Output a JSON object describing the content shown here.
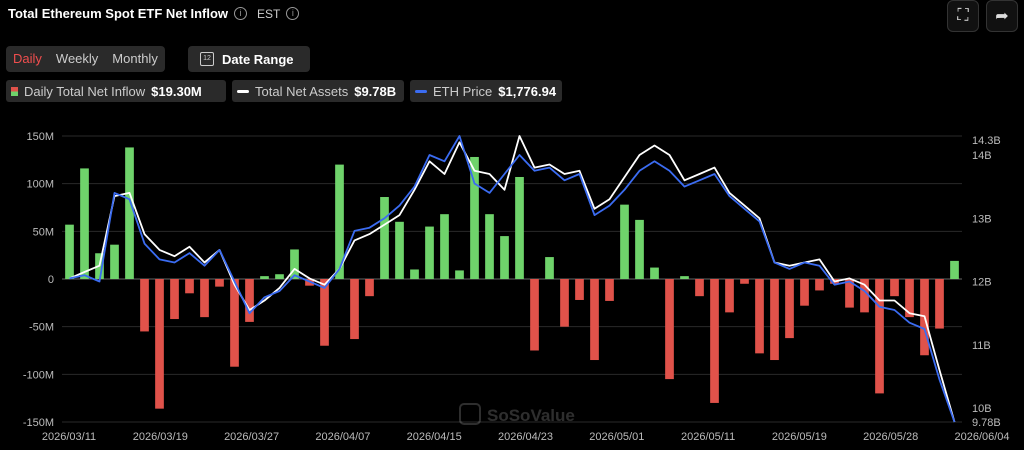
{
  "header": {
    "title": "Total Ethereum Spot ETF Net Inflow",
    "timezone": "EST"
  },
  "tabs": [
    {
      "label": "Daily",
      "active": true
    },
    {
      "label": "Weekly"
    },
    {
      "label": "Monthly"
    }
  ],
  "date_range_label": "Date Range",
  "legend": [
    {
      "label": "Daily Total Net Inflow",
      "value": "$19.30M"
    },
    {
      "label": "Total Net Assets",
      "value": "$9.78B",
      "color": "#ffffff"
    },
    {
      "label": "ETH Price",
      "value": "$1,776.94",
      "color": "#3b6cf2"
    }
  ],
  "watermark": "SoSoValue",
  "colors": {
    "positive": "#6fd36b",
    "negative": "#e0524a",
    "assets_line": "#ffffff",
    "price_line": "#3b6cf2"
  },
  "chart_data": {
    "type": "bar",
    "title": "Total Ethereum Spot ETF Net Inflow",
    "x_tick_labels": [
      "2026/03/11",
      "2026/03/19",
      "2026/03/27",
      "2026/04/07",
      "2026/04/15",
      "2026/04/23",
      "2026/05/01",
      "2026/05/11",
      "2026/05/19",
      "2026/05/28",
      "2026/06/04"
    ],
    "y_left": {
      "ticks": [
        "150M",
        "100M",
        "50M",
        "0",
        "-50M",
        "-100M",
        "-150M"
      ],
      "range": [
        -150,
        150
      ],
      "unit": "M USD"
    },
    "y_right": {
      "ticks": [
        "14.3B",
        "14B",
        "13B",
        "12B",
        "11B",
        "10B",
        "9.78B"
      ],
      "range": [
        9.78,
        14.3
      ],
      "unit": "B USD"
    },
    "series": [
      {
        "name": "Daily Total Net Inflow",
        "kind": "bar",
        "values": [
          57,
          116,
          27,
          36,
          138,
          -55,
          -136,
          -42,
          -15,
          -40,
          -8,
          -92,
          -45,
          3,
          5,
          31,
          -7,
          -70,
          120,
          -63,
          -18,
          86,
          60,
          10,
          55,
          68,
          9,
          128,
          68,
          45,
          107,
          -75,
          23,
          -50,
          -22,
          -85,
          -23,
          78,
          62,
          12,
          -105,
          3,
          -18,
          -130,
          -35,
          -5,
          -78,
          -85,
          -62,
          -28,
          -12,
          -5,
          -30,
          -35,
          -120,
          -18,
          -40,
          -80,
          -52,
          19
        ]
      },
      {
        "name": "Total Net Assets",
        "kind": "line",
        "axis": "right",
        "values": [
          12.05,
          12.15,
          12.25,
          13.35,
          13.4,
          12.75,
          12.5,
          12.4,
          12.55,
          12.3,
          12.5,
          11.95,
          11.55,
          11.7,
          11.9,
          12.2,
          12.05,
          11.95,
          12.2,
          12.65,
          12.75,
          12.9,
          13.05,
          13.45,
          13.9,
          13.7,
          14.2,
          13.75,
          13.7,
          13.45,
          14.3,
          13.8,
          13.85,
          13.7,
          13.75,
          13.15,
          13.3,
          13.65,
          14.0,
          14.15,
          14.0,
          13.6,
          13.7,
          13.8,
          13.4,
          13.2,
          13.0,
          12.3,
          12.25,
          12.3,
          12.35,
          12.0,
          12.05,
          11.95,
          11.7,
          11.7,
          11.5,
          11.45,
          10.6,
          9.78
        ]
      },
      {
        "name": "ETH Price",
        "kind": "line",
        "axis": "right",
        "values": [
          12.05,
          12.1,
          12.0,
          13.4,
          13.3,
          12.6,
          12.35,
          12.3,
          12.45,
          12.25,
          12.5,
          12.0,
          11.5,
          11.75,
          11.85,
          12.1,
          12.0,
          11.9,
          12.2,
          12.8,
          12.85,
          13.0,
          13.2,
          13.5,
          14.0,
          13.9,
          14.3,
          13.55,
          13.4,
          13.7,
          14.0,
          13.75,
          13.8,
          13.6,
          13.7,
          13.05,
          13.2,
          13.45,
          13.75,
          13.9,
          13.75,
          13.5,
          13.6,
          13.7,
          13.35,
          13.15,
          12.95,
          12.3,
          12.2,
          12.3,
          12.25,
          11.95,
          12.0,
          11.85,
          11.6,
          11.55,
          11.35,
          11.25,
          10.45,
          9.78
        ]
      }
    ],
    "grid": "horizontal"
  }
}
